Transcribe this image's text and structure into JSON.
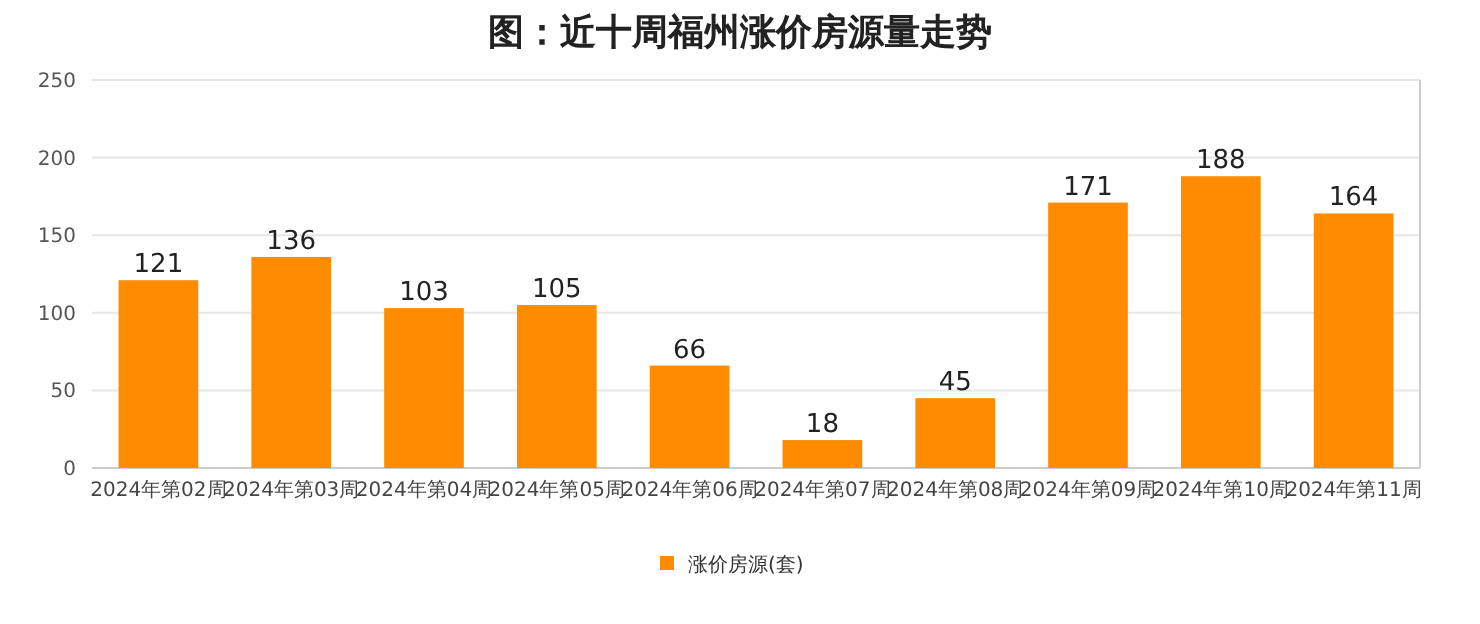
{
  "chart_data": {
    "type": "bar",
    "title": "图：近十周福州涨价房源量走势",
    "categories": [
      "2024年第02周",
      "2024年第03周",
      "2024年第04周",
      "2024年第05周",
      "2024年第06周",
      "2024年第07周",
      "2024年第08周",
      "2024年第09周",
      "2024年第10周",
      "2024年第11周"
    ],
    "series": [
      {
        "name": "涨价房源(套)",
        "color": "#ff8c00",
        "values": [
          121,
          136,
          103,
          105,
          66,
          18,
          45,
          171,
          188,
          164
        ]
      }
    ],
    "ylim": [
      0,
      250
    ],
    "yticks": [
      0,
      50,
      100,
      150,
      200,
      250
    ],
    "grid": "y",
    "legend": "bottom",
    "data_labels": true
  }
}
